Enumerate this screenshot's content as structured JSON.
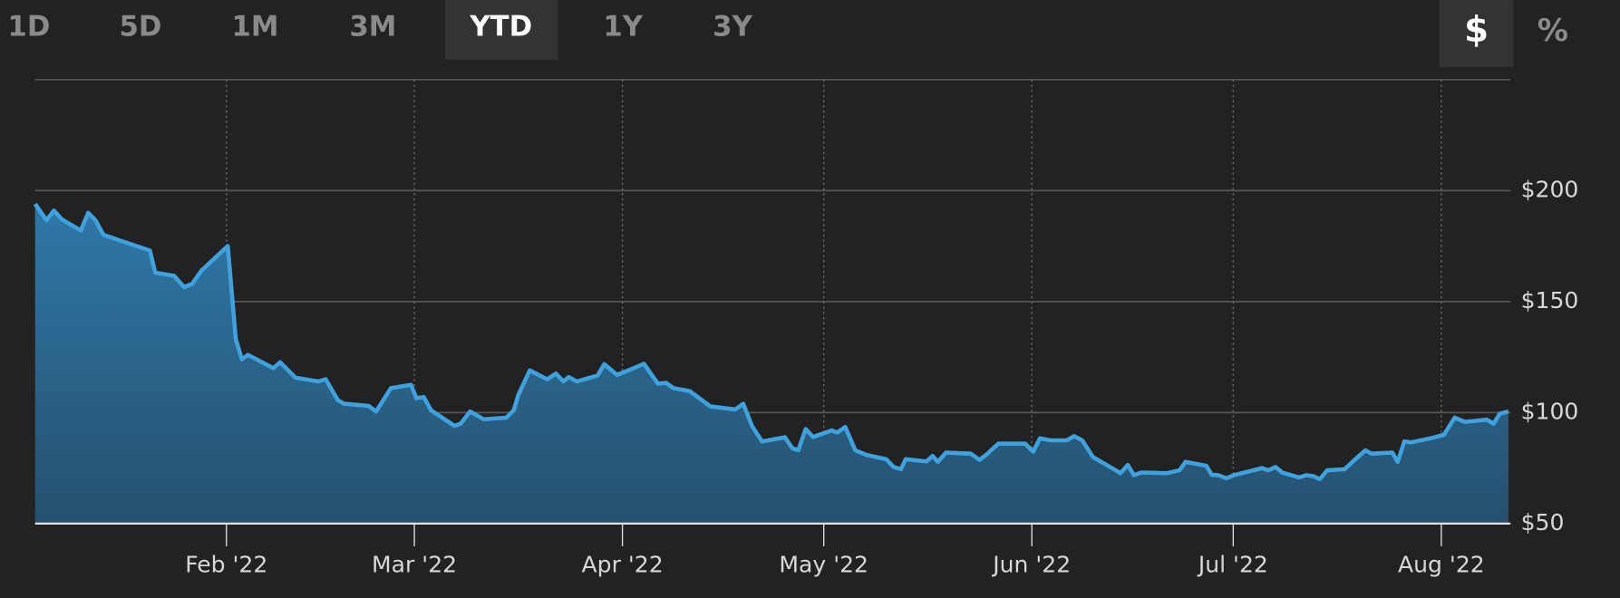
{
  "controls": {
    "ranges": [
      "1D",
      "5D",
      "1M",
      "3M",
      "YTD",
      "1Y",
      "3Y"
    ],
    "selected_range": "YTD",
    "units": [
      "$",
      "%"
    ],
    "selected_unit": "$"
  },
  "chart_data": {
    "type": "area",
    "color": "#3fa2de",
    "grid": true,
    "xlim": [
      2.5,
      222
    ],
    "xticks": [
      {
        "value": 31,
        "label": "Feb '22"
      },
      {
        "value": 59,
        "label": "Mar '22"
      },
      {
        "value": 90,
        "label": "Apr '22"
      },
      {
        "value": 120,
        "label": "May '22"
      },
      {
        "value": 151,
        "label": "Jun '22"
      },
      {
        "value": 181,
        "label": "Jul '22"
      },
      {
        "value": 212,
        "label": "Aug '22"
      }
    ],
    "ylim": [
      50,
      250
    ],
    "yticks": [
      {
        "value": 50,
        "label": "$50"
      },
      {
        "value": 100,
        "label": "$100"
      },
      {
        "value": 150,
        "label": "$150"
      },
      {
        "value": 200,
        "label": "$200"
      }
    ],
    "x": [
      2.5,
      4.2,
      5.3,
      6.5,
      9.3,
      10.4,
      11.5,
      12.7,
      19.6,
      20.4,
      23.2,
      24.7,
      25.9,
      27.3,
      31.2,
      32.4,
      33.3,
      34.2,
      38,
      39,
      41.3,
      44.7,
      45.8,
      47.6,
      48.5,
      52.2,
      53.3,
      55.5,
      58.5,
      59.3,
      60.4,
      61.5,
      65,
      65.9,
      67.3,
      69.3,
      72.7,
      73.8,
      74.5,
      76.2,
      78.8,
      80.1,
      81.2,
      82,
      83.2,
      86.3,
      87.3,
      89.2,
      91.2,
      93.2,
      95.3,
      96.5,
      97.6,
      100,
      103.1,
      106.8,
      108,
      109.3,
      110.8,
      114.2,
      115.3,
      116.2,
      117.3,
      118.4,
      121.2,
      122,
      123.2,
      124.7,
      126.3,
      129.3,
      130.4,
      131.5,
      132.2,
      135.3,
      136.2,
      137,
      138.2,
      141.9,
      143.2,
      144.2,
      146,
      150,
      151.2,
      152.2,
      153.8,
      156.2,
      157.3,
      158.5,
      160.1,
      163.5,
      164.2,
      165.3,
      166.2,
      167.3,
      171.1,
      173,
      173.9,
      177,
      177.8,
      178.8,
      180,
      181.1,
      185.3,
      186.2,
      187.3,
      188.3,
      190.8,
      191.9,
      193,
      193.9,
      195,
      197.6,
      199.2,
      200.7,
      201.6,
      204.7,
      205.5,
      206.5,
      207.5,
      210.4,
      212.4,
      214,
      215.5,
      218.8,
      219.8,
      220.7,
      222
    ],
    "values": [
      194,
      186.6,
      191,
      187,
      182,
      190,
      186.6,
      180,
      173,
      163,
      161.6,
      156.5,
      158,
      164,
      175,
      133,
      124,
      126,
      120,
      122.7,
      115.7,
      114,
      115,
      105.6,
      104,
      103,
      100.5,
      111,
      112.5,
      106.5,
      107,
      101,
      94,
      95,
      100.5,
      97,
      97.7,
      101,
      108,
      119,
      115,
      117.6,
      114,
      116,
      114,
      116.7,
      121.8,
      117,
      119.4,
      122,
      113,
      113.4,
      111,
      109.7,
      102.8,
      101.4,
      104,
      94,
      87,
      88.9,
      84,
      83,
      92.6,
      89,
      92,
      91,
      93.5,
      83,
      81,
      79,
      75.5,
      74.5,
      79,
      78,
      80.5,
      77.8,
      82,
      81.5,
      78.7,
      81,
      86,
      86,
      82.4,
      88.4,
      87.5,
      87.5,
      89.4,
      87.5,
      80,
      74,
      72.7,
      76.4,
      71.8,
      73,
      72.7,
      74,
      77.8,
      76,
      72,
      71.8,
      70.4,
      71.8,
      75,
      74,
      75.5,
      73,
      70.8,
      71.8,
      71.3,
      70,
      74,
      74.5,
      79,
      83,
      81.5,
      82,
      77.8,
      87,
      86.6,
      88.4,
      90,
      97.7,
      95.8,
      96.8,
      95,
      99.5,
      100.5
    ]
  }
}
